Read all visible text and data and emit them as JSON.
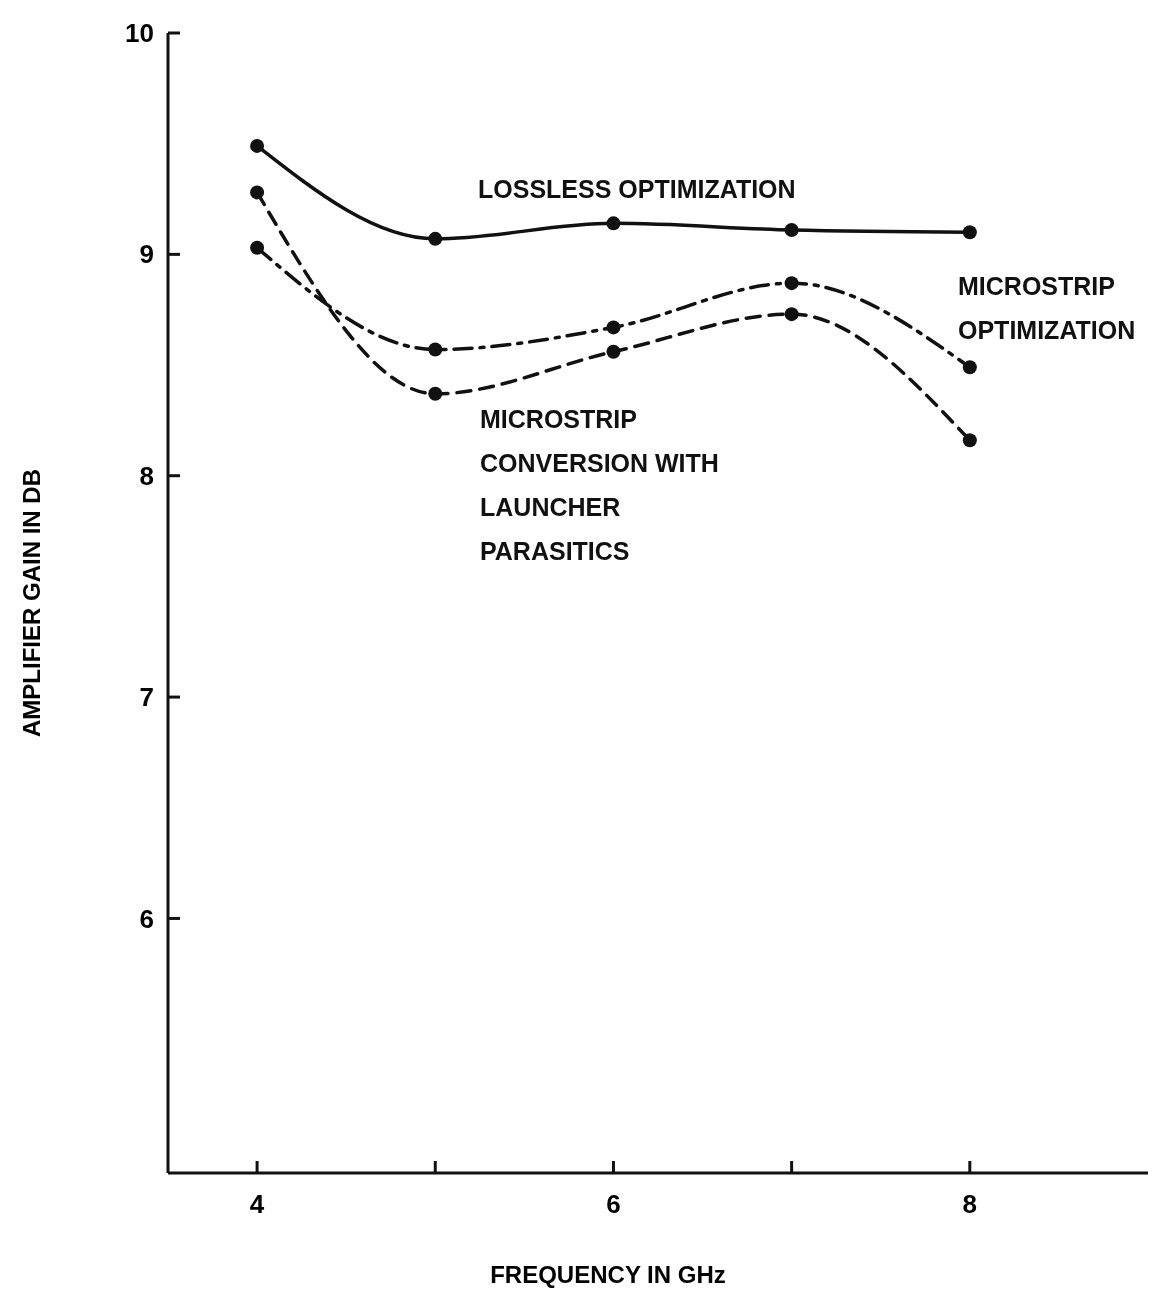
{
  "chart_data": {
    "type": "line",
    "xlabel": "FREQUENCY IN GHz",
    "ylabel": "AMPLIFIER GAIN IN DB",
    "x": [
      4,
      5,
      6,
      7,
      8
    ],
    "xlim": [
      3.5,
      9.0
    ],
    "xticks": [
      4,
      {
        "value": 5,
        "label": null
      },
      6,
      {
        "value": 7,
        "label": null
      },
      8
    ],
    "ylim": [
      4.85,
      10
    ],
    "yticks": [
      6,
      7,
      8,
      9,
      10
    ],
    "grid": false,
    "marker": "circle",
    "series": [
      {
        "name": "LOSSLESS OPTIMIZATION",
        "color": "#111111",
        "line_style": "solid",
        "values": [
          9.49,
          9.07,
          9.14,
          9.11,
          9.1
        ]
      },
      {
        "name": "MICROSTRIP OPTIMIZATION",
        "color": "#111111",
        "line_style": "dashdot",
        "values": [
          9.03,
          8.57,
          8.67,
          8.87,
          8.49
        ]
      },
      {
        "name": "MICROSTRIP CONVERSION WITH LAUNCHER PARASITICS",
        "color": "#111111",
        "line_style": "dashed",
        "values": [
          9.28,
          8.37,
          8.56,
          8.73,
          8.16
        ]
      }
    ]
  }
}
